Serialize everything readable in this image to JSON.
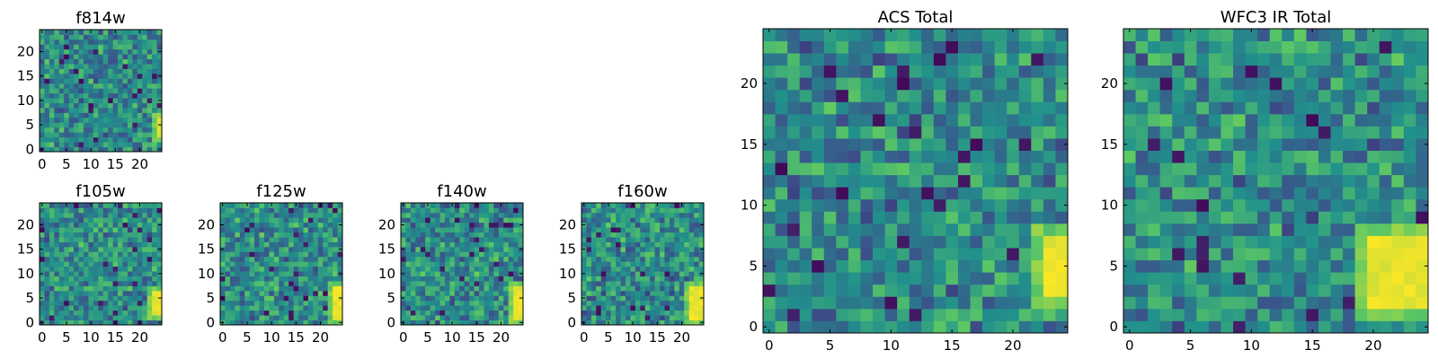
{
  "figure": {
    "colormap": "viridis",
    "colormap_stops": [
      "#440154",
      "#3b528b",
      "#21918c",
      "#5ec962",
      "#fde725"
    ],
    "frame_color": "#000000",
    "background": "#ffffff"
  },
  "chart_data": [
    {
      "id": "f814w",
      "type": "heatmap",
      "title": "f814w",
      "grid_size": 25,
      "xlim": [
        0,
        24
      ],
      "ylim": [
        0,
        24
      ],
      "xticks": [
        0,
        5,
        10,
        15,
        20
      ],
      "yticks": [
        0,
        5,
        10,
        15,
        20
      ],
      "bright_region": {
        "x": [
          24,
          24
        ],
        "y": [
          3,
          6
        ]
      }
    },
    {
      "id": "f105w",
      "type": "heatmap",
      "title": "f105w",
      "grid_size": 25,
      "xlim": [
        0,
        24
      ],
      "ylim": [
        0,
        24
      ],
      "xticks": [
        0,
        5,
        10,
        15,
        20
      ],
      "yticks": [
        0,
        5,
        10,
        15,
        20
      ],
      "bright_region": {
        "x": [
          23,
          24
        ],
        "y": [
          2,
          6
        ]
      }
    },
    {
      "id": "f125w",
      "type": "heatmap",
      "title": "f125w",
      "grid_size": 25,
      "xlim": [
        0,
        24
      ],
      "ylim": [
        0,
        24
      ],
      "xticks": [
        0,
        5,
        10,
        15,
        20
      ],
      "yticks": [
        0,
        5,
        10,
        15,
        20
      ],
      "bright_region": {
        "x": [
          23,
          24
        ],
        "y": [
          1,
          7
        ]
      }
    },
    {
      "id": "f140w",
      "type": "heatmap",
      "title": "f140w",
      "grid_size": 25,
      "xlim": [
        0,
        24
      ],
      "ylim": [
        0,
        24
      ],
      "xticks": [
        0,
        5,
        10,
        15,
        20
      ],
      "yticks": [
        0,
        5,
        10,
        15,
        20
      ],
      "bright_region": {
        "x": [
          23,
          24
        ],
        "y": [
          1,
          7
        ]
      }
    },
    {
      "id": "f160w",
      "type": "heatmap",
      "title": "f160w",
      "grid_size": 25,
      "xlim": [
        0,
        24
      ],
      "ylim": [
        0,
        24
      ],
      "xticks": [
        0,
        5,
        10,
        15,
        20
      ],
      "yticks": [
        0,
        5,
        10,
        15,
        20
      ],
      "bright_region": {
        "x": [
          22,
          24
        ],
        "y": [
          1,
          7
        ]
      }
    },
    {
      "id": "acs_total",
      "type": "heatmap",
      "title": "ACS Total",
      "grid_size": 25,
      "xlim": [
        0,
        24
      ],
      "ylim": [
        0,
        24
      ],
      "xticks": [
        0,
        5,
        10,
        15,
        20
      ],
      "yticks": [
        0,
        5,
        10,
        15,
        20
      ],
      "bright_region": {
        "x": [
          23,
          24
        ],
        "y": [
          3,
          7
        ]
      }
    },
    {
      "id": "wfc3_ir_total",
      "type": "heatmap",
      "title": "WFC3 IR Total",
      "grid_size": 25,
      "xlim": [
        0,
        24
      ],
      "ylim": [
        0,
        24
      ],
      "xticks": [
        0,
        5,
        10,
        15,
        20
      ],
      "yticks": [
        0,
        5,
        10,
        15,
        20
      ],
      "bright_region": {
        "x": [
          20,
          24
        ],
        "y": [
          2,
          7
        ]
      }
    }
  ]
}
